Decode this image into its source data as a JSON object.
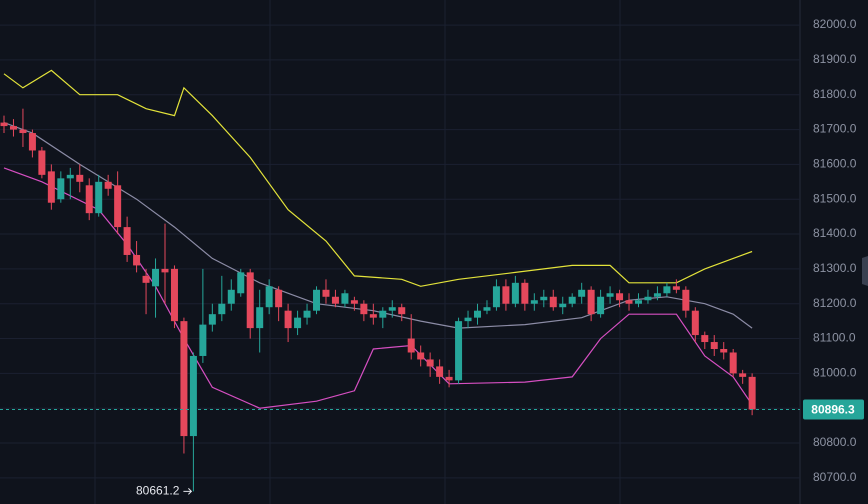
{
  "chart_data": {
    "type": "candlestick",
    "open": [
      81720,
      81710,
      81700,
      81690,
      81640,
      81580,
      81500,
      81560,
      81570,
      81540,
      81460,
      81550,
      81540,
      81420,
      81340,
      81280,
      81250,
      81300,
      81300,
      81150,
      80820,
      81050,
      81140,
      81170,
      81200,
      81230,
      81290,
      81130,
      81190,
      81240,
      81180,
      81130,
      81160,
      81180,
      81240,
      81220,
      81200,
      81210,
      81200,
      81170,
      81160,
      81180,
      81190,
      81100,
      81060,
      81040,
      81020,
      80990,
      80980,
      81150,
      81160,
      81180,
      81190,
      81250,
      81200,
      81260,
      81200,
      81210,
      81220,
      81190,
      81200,
      81220,
      81240,
      81170,
      81220,
      81230,
      81210,
      81200,
      81210,
      81220,
      81230,
      81250,
      81240,
      81180,
      81110,
      81090,
      81070,
      81060,
      81000,
      80990
    ],
    "high": [
      81740,
      81730,
      81760,
      81700,
      81650,
      81600,
      81580,
      81590,
      81600,
      81560,
      81570,
      81570,
      81580,
      81450,
      81380,
      81300,
      81330,
      81430,
      81310,
      81160,
      81060,
      81300,
      81200,
      81280,
      81270,
      81300,
      81300,
      81240,
      81270,
      81250,
      81200,
      81180,
      81200,
      81250,
      81270,
      81240,
      81240,
      81220,
      81210,
      81200,
      81190,
      81210,
      81200,
      81170,
      81080,
      81060,
      81040,
      81010,
      81160,
      81180,
      81200,
      81210,
      81270,
      81270,
      81280,
      81270,
      81230,
      81240,
      81240,
      81220,
      81230,
      81260,
      81250,
      81240,
      81250,
      81240,
      81230,
      81230,
      81240,
      81250,
      81260,
      81270,
      81250,
      81190,
      81120,
      81110,
      81090,
      81070,
      81010,
      81000
    ],
    "low": [
      81690,
      81680,
      81650,
      81620,
      81560,
      81470,
      81490,
      81500,
      81520,
      81440,
      81450,
      81510,
      81400,
      81320,
      81290,
      81170,
      81160,
      81200,
      81130,
      80770,
      80661.2,
      81030,
      81120,
      81150,
      81180,
      81220,
      81100,
      81060,
      81170,
      81150,
      81090,
      81110,
      81140,
      81170,
      81200,
      81190,
      81190,
      81180,
      81150,
      81140,
      81130,
      81160,
      81150,
      81040,
      81020,
      80990,
      80970,
      80960,
      80970,
      81130,
      81140,
      81170,
      81180,
      81180,
      81190,
      81180,
      81180,
      81190,
      81180,
      81170,
      81190,
      81200,
      81150,
      81160,
      81200,
      81190,
      81180,
      81190,
      81200,
      81210,
      81220,
      81230,
      81160,
      81090,
      81070,
      81050,
      81040,
      80990,
      80970,
      80880
    ],
    "close": [
      81710,
      81700,
      81690,
      81640,
      81570,
      81490,
      81560,
      81570,
      81550,
      81460,
      81550,
      81530,
      81420,
      81340,
      81310,
      81260,
      81300,
      81290,
      81150,
      80820,
      81050,
      81140,
      81170,
      81200,
      81240,
      81290,
      81130,
      81190,
      81250,
      81190,
      81130,
      81160,
      81180,
      81240,
      81220,
      81200,
      81230,
      81200,
      81170,
      81160,
      81180,
      81190,
      81170,
      81060,
      81040,
      81020,
      80990,
      80980,
      81150,
      81160,
      81180,
      81190,
      81250,
      81200,
      81260,
      81200,
      81210,
      81220,
      81190,
      81200,
      81220,
      81240,
      81170,
      81220,
      81230,
      81210,
      81200,
      81210,
      81220,
      81230,
      81250,
      81240,
      81180,
      81110,
      81090,
      81070,
      81060,
      81000,
      80990,
      80896.3
    ],
    "up_color": "#26a69a",
    "down_color": "#e5485c",
    "last_color": "#26a69a",
    "series": [
      {
        "color": "#e3e33a",
        "x": [
          0,
          2,
          5,
          8,
          12,
          15,
          18,
          19,
          22,
          26,
          30,
          34,
          37,
          42,
          44,
          48,
          54,
          60,
          64,
          66,
          71,
          74,
          77,
          79
        ],
        "values": [
          81860,
          81820,
          81870,
          81800,
          81800,
          81760,
          81740,
          81820,
          81740,
          81620,
          81470,
          81380,
          81280,
          81270,
          81250,
          81270,
          81290,
          81310,
          81310,
          81260,
          81260,
          81300,
          81330,
          81350
        ]
      },
      {
        "color": "#8c8ca6",
        "x": [
          0,
          3,
          8,
          14,
          18,
          22,
          27,
          33,
          39,
          44,
          48,
          55,
          61,
          66,
          70,
          74,
          77,
          79
        ],
        "values": [
          81720,
          81690,
          81600,
          81500,
          81420,
          81330,
          81260,
          81200,
          81180,
          81150,
          81130,
          81140,
          81160,
          81210,
          81220,
          81200,
          81170,
          81130
        ]
      },
      {
        "color": "#d64fc2",
        "x": [
          0,
          4,
          10,
          13,
          16,
          19,
          22,
          27,
          33,
          37,
          39,
          43,
          47,
          55,
          60,
          63,
          66,
          71,
          74,
          77,
          79
        ],
        "values": [
          81590,
          81550,
          81470,
          81370,
          81250,
          81100,
          80960,
          80900,
          80920,
          80950,
          81070,
          81080,
          80970,
          80975,
          80990,
          81100,
          81170,
          81170,
          81050,
          80990,
          80910
        ]
      }
    ],
    "ylim": [
      80625,
      82072
    ],
    "yticks": [
      {
        "value": 80700,
        "label": "80700.0"
      },
      {
        "value": 80800,
        "label": "80800.0"
      },
      {
        "value": 80900,
        "label": "80900.0"
      },
      {
        "value": 81000,
        "label": "81000.0"
      },
      {
        "value": 81100,
        "label": "81100.0"
      },
      {
        "value": 81200,
        "label": "81200.0"
      },
      {
        "value": 81300,
        "label": "81300.0"
      },
      {
        "value": 81400,
        "label": "81400.0"
      },
      {
        "value": 81500,
        "label": "81500.0"
      },
      {
        "value": 81600,
        "label": "81600.0"
      },
      {
        "value": 81700,
        "label": "81700.0"
      },
      {
        "value": 81800,
        "label": "81800.0"
      },
      {
        "value": 81900,
        "label": "81900.0"
      },
      {
        "value": 82000,
        "label": "82000.0"
      }
    ],
    "grid": true
  }
}
